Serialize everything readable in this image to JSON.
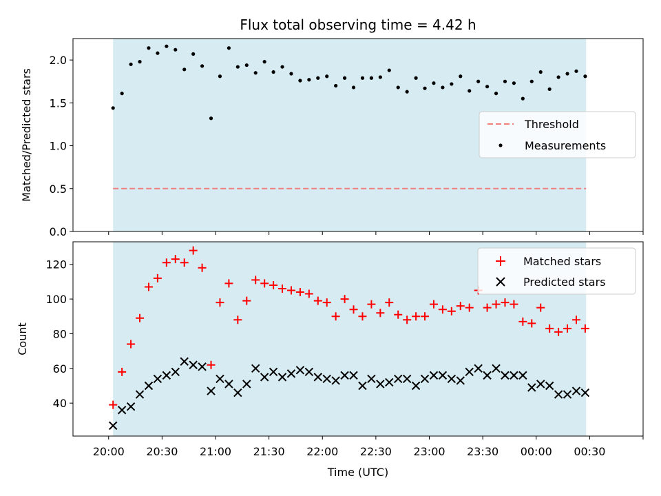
{
  "chart_data": [
    {
      "type": "scatter",
      "title": "Flux total observing time = 4.42 h",
      "xlabel": "",
      "ylabel": "Matched/Predicted stars",
      "ylim": [
        0,
        2.25
      ],
      "yticks": [
        0.0,
        0.5,
        1.0,
        1.5,
        2.0
      ],
      "ytick_labels": [
        "0.0",
        "0.5",
        "1.0",
        "1.5",
        "2.0"
      ],
      "x_unit": "minutes after 20:00 UTC",
      "xlim": [
        -20,
        300
      ],
      "xticks": [
        0,
        30,
        60,
        90,
        120,
        150,
        180,
        210,
        240,
        270,
        300
      ],
      "xtick_labels": [],
      "shaded_span": [
        2.5,
        268
      ],
      "grid": false,
      "legend_position": "center-right",
      "threshold": {
        "name": "Threshold",
        "value": 0.5,
        "color": "#f08080",
        "style": "dashed"
      },
      "series": [
        {
          "name": "Measurements",
          "color": "#000000",
          "marker": "dot",
          "x": [
            2.5,
            7.5,
            12.5,
            17.5,
            22.5,
            27.5,
            32.5,
            37.5,
            42.5,
            47.5,
            52.5,
            57.5,
            62.5,
            67.5,
            72.5,
            77.5,
            82.5,
            87.5,
            92.5,
            97.5,
            102.5,
            107.5,
            112.5,
            117.5,
            122.5,
            127.5,
            132.5,
            137.5,
            142.5,
            147.5,
            152.5,
            157.5,
            162.5,
            167.5,
            172.5,
            177.5,
            182.5,
            187.5,
            192.5,
            197.5,
            202.5,
            207.5,
            212.5,
            217.5,
            222.5,
            227.5,
            232.5,
            237.5,
            242.5,
            247.5,
            252.5,
            257.5,
            262.5,
            267.5
          ],
          "y": [
            1.44,
            1.61,
            1.95,
            1.98,
            2.14,
            2.08,
            2.16,
            2.12,
            1.89,
            2.07,
            1.93,
            1.32,
            1.81,
            2.14,
            1.92,
            1.94,
            1.85,
            1.98,
            1.86,
            1.92,
            1.84,
            1.76,
            1.77,
            1.79,
            1.81,
            1.7,
            1.79,
            1.68,
            1.79,
            1.79,
            1.8,
            1.88,
            1.68,
            1.63,
            1.79,
            1.67,
            1.73,
            1.68,
            1.72,
            1.81,
            1.64,
            1.75,
            1.69,
            1.61,
            1.75,
            1.73,
            1.55,
            1.75,
            1.86,
            1.66,
            1.8,
            1.84,
            1.87,
            1.81
          ]
        }
      ]
    },
    {
      "type": "scatter",
      "title": "",
      "xlabel": "Time (UTC)",
      "ylabel": "Count",
      "ylim": [
        21,
        133
      ],
      "yticks": [
        40,
        60,
        80,
        100,
        120
      ],
      "ytick_labels": [
        "40",
        "60",
        "80",
        "100",
        "120"
      ],
      "x_unit": "minutes after 20:00 UTC",
      "xlim": [
        -20,
        300
      ],
      "xticks": [
        0,
        30,
        60,
        90,
        120,
        150,
        180,
        210,
        240,
        270,
        300
      ],
      "xtick_labels": [
        "20:00",
        "20:30",
        "21:00",
        "21:30",
        "22:00",
        "22:30",
        "23:00",
        "23:30",
        "00:00",
        "00:30"
      ],
      "xtick_label_positions": [
        0,
        30,
        60,
        90,
        120,
        150,
        180,
        210,
        240,
        270
      ],
      "shaded_span": [
        2.5,
        268
      ],
      "grid": false,
      "legend_position": "top-right",
      "series": [
        {
          "name": "Matched stars",
          "color": "#ff0000",
          "marker": "plus",
          "x": [
            2.5,
            7.5,
            12.5,
            17.5,
            22.5,
            27.5,
            32.5,
            37.5,
            42.5,
            47.5,
            52.5,
            57.5,
            62.5,
            67.5,
            72.5,
            77.5,
            82.5,
            87.5,
            92.5,
            97.5,
            102.5,
            107.5,
            112.5,
            117.5,
            122.5,
            127.5,
            132.5,
            137.5,
            142.5,
            147.5,
            152.5,
            157.5,
            162.5,
            167.5,
            172.5,
            177.5,
            182.5,
            187.5,
            192.5,
            197.5,
            202.5,
            207.5,
            212.5,
            217.5,
            222.5,
            227.5,
            232.5,
            237.5,
            242.5,
            247.5,
            252.5,
            257.5,
            262.5,
            267.5
          ],
          "y": [
            39,
            58,
            74,
            89,
            107,
            112,
            121,
            123,
            121,
            128,
            118,
            62,
            98,
            109,
            88,
            99,
            111,
            109,
            108,
            106,
            105,
            104,
            103,
            99,
            98,
            90,
            100,
            94,
            90,
            97,
            92,
            98,
            91,
            88,
            90,
            90,
            97,
            94,
            93,
            96,
            95,
            105,
            95,
            97,
            98,
            97,
            87,
            86,
            95,
            83,
            81,
            83,
            88,
            83
          ]
        },
        {
          "name": "Predicted stars",
          "color": "#000000",
          "marker": "x",
          "x": [
            2.5,
            7.5,
            12.5,
            17.5,
            22.5,
            27.5,
            32.5,
            37.5,
            42.5,
            47.5,
            52.5,
            57.5,
            62.5,
            67.5,
            72.5,
            77.5,
            82.5,
            87.5,
            92.5,
            97.5,
            102.5,
            107.5,
            112.5,
            117.5,
            122.5,
            127.5,
            132.5,
            137.5,
            142.5,
            147.5,
            152.5,
            157.5,
            162.5,
            167.5,
            172.5,
            177.5,
            182.5,
            187.5,
            192.5,
            197.5,
            202.5,
            207.5,
            212.5,
            217.5,
            222.5,
            227.5,
            232.5,
            237.5,
            242.5,
            247.5,
            252.5,
            257.5,
            262.5,
            267.5
          ],
          "y": [
            27,
            36,
            38,
            45,
            50,
            54,
            56,
            58,
            64,
            62,
            61,
            47,
            54,
            51,
            46,
            51,
            60,
            55,
            58,
            55,
            57,
            59,
            58,
            55,
            54,
            53,
            56,
            56,
            50,
            54,
            51,
            52,
            54,
            54,
            50,
            54,
            56,
            56,
            54,
            53,
            58,
            60,
            56,
            60,
            56,
            56,
            56,
            49,
            51,
            50,
            45,
            45,
            47,
            46
          ]
        }
      ]
    }
  ]
}
